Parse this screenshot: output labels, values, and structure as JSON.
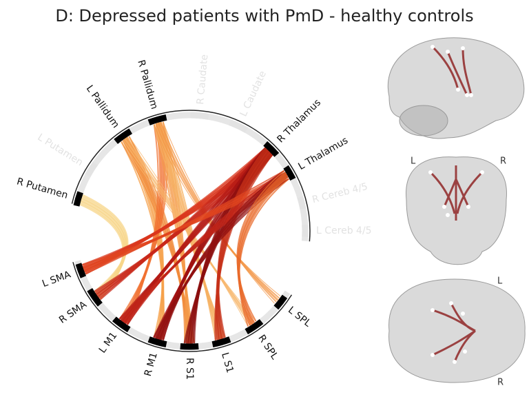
{
  "title": "D: Depressed patients with PmD - healthy controls",
  "connectogram": {
    "nodes": [
      {
        "label": "R Putamen",
        "highlighted": true
      },
      {
        "label": "L Putamen",
        "highlighted": false
      },
      {
        "label": "L Pallidum",
        "highlighted": true
      },
      {
        "label": "R Pallidum",
        "highlighted": true
      },
      {
        "label": "R Caudate",
        "highlighted": false
      },
      {
        "label": "L Caudate",
        "highlighted": false
      },
      {
        "label": "R Thalamus",
        "highlighted": true
      },
      {
        "label": "L Thalamus",
        "highlighted": true
      },
      {
        "label": "R Cereb 4/5",
        "highlighted": false
      },
      {
        "label": "L Cereb 4/5",
        "highlighted": false
      },
      {
        "label": "L SMA",
        "highlighted": true
      },
      {
        "label": "R SMA",
        "highlighted": true
      },
      {
        "label": "L M1",
        "highlighted": true
      },
      {
        "label": "R M1",
        "highlighted": true
      },
      {
        "label": "R S1",
        "highlighted": true
      },
      {
        "label": "L S1",
        "highlighted": true
      },
      {
        "label": "R SPL",
        "highlighted": true
      },
      {
        "label": "L SPL",
        "highlighted": true
      }
    ]
  },
  "brain_views": {
    "coronal": {
      "left": "L",
      "right": "R"
    },
    "axial": {
      "top": "L",
      "bottom": "R"
    }
  }
}
